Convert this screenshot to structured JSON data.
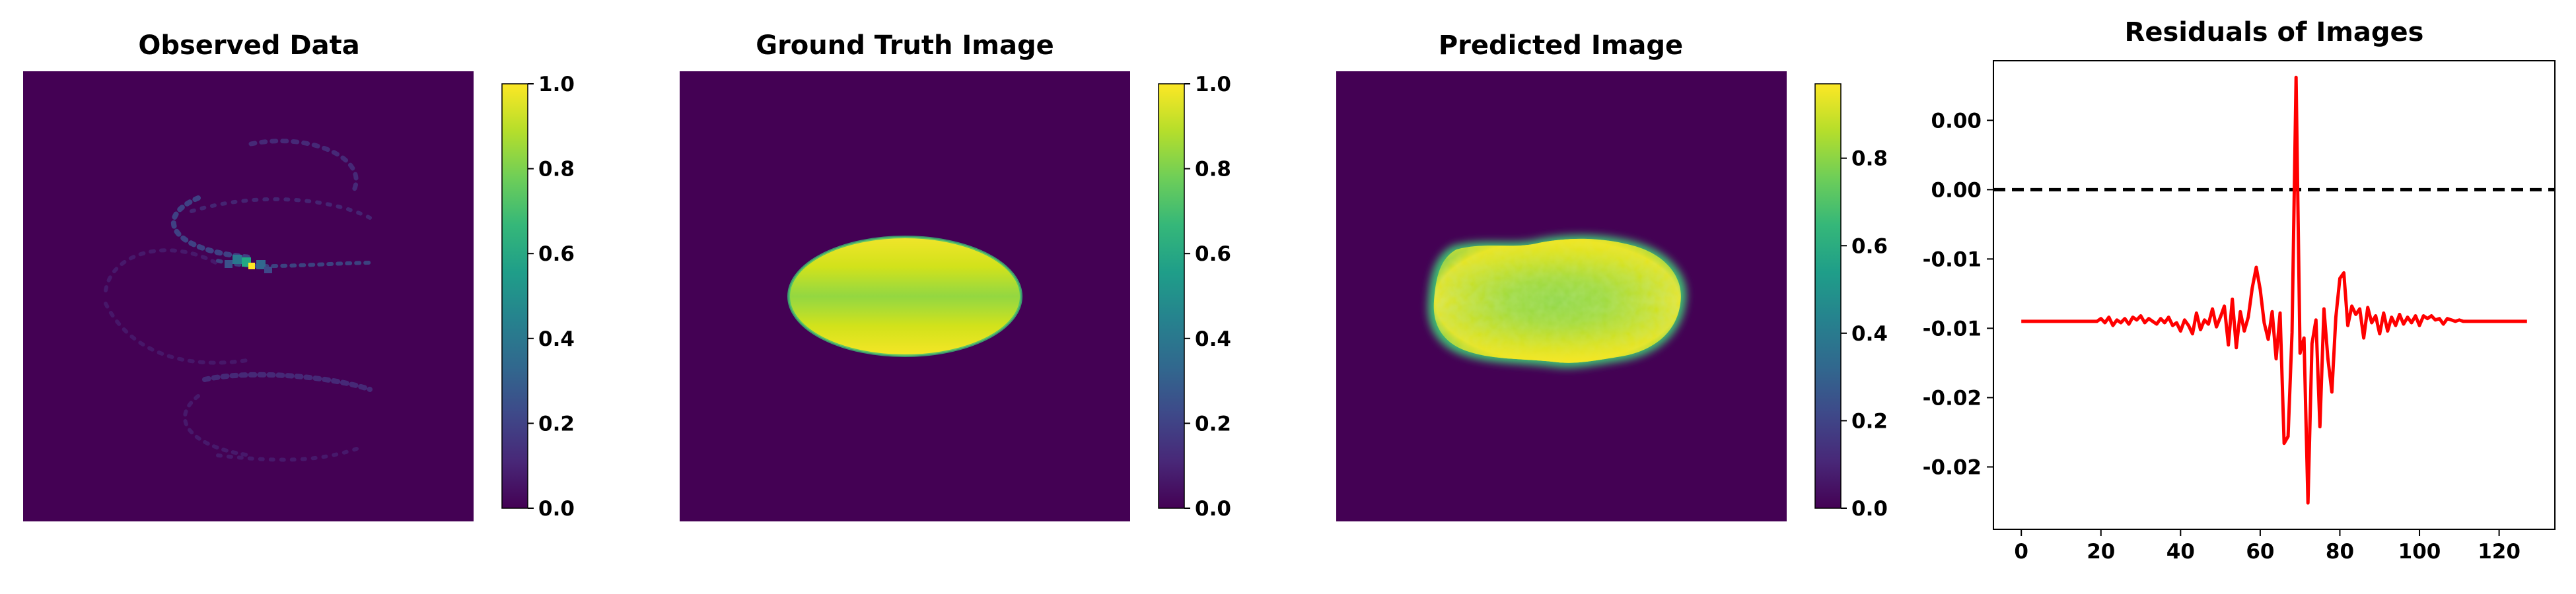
{
  "chart_data": [
    {
      "type": "heatmap",
      "title": "Observed Data",
      "description": "128x128 sparse observed field on dark purple background; a few faint arcs with a bright spot near the center",
      "value_range": [
        0.0,
        1.0
      ],
      "colormap": "viridis",
      "colorbar_ticks": [
        "0.0",
        "0.2",
        "0.4",
        "0.6",
        "0.8",
        "1.0"
      ],
      "colorbar_tick_values": [
        0.0,
        0.2,
        0.4,
        0.6,
        0.8,
        1.0
      ],
      "axes_visible": false
    },
    {
      "type": "heatmap",
      "title": "Ground Truth Image",
      "description": "Filled ellipse (values ~0.85–1.0) centered on a 0-valued background",
      "value_range": [
        0.0,
        1.0
      ],
      "colormap": "viridis",
      "colorbar_ticks": [
        "0.0",
        "0.2",
        "0.4",
        "0.6",
        "0.8",
        "1.0"
      ],
      "colorbar_tick_values": [
        0.0,
        0.2,
        0.4,
        0.6,
        0.8,
        1.0
      ],
      "axes_visible": false
    },
    {
      "type": "heatmap",
      "title": "Predicted Image",
      "description": "Blurry, slightly irregular ellipse (values ~0.7–0.97) on a 0-valued background",
      "value_range": [
        0.0,
        0.97
      ],
      "colormap": "viridis",
      "colorbar_ticks": [
        "0.0",
        "0.2",
        "0.4",
        "0.6",
        "0.8"
      ],
      "colorbar_tick_values": [
        0.0,
        0.2,
        0.4,
        0.6,
        0.8
      ],
      "axes_visible": false
    },
    {
      "type": "line",
      "title": "Residuals of Images",
      "xlabel": "",
      "ylabel": "",
      "xlim": [
        -7,
        134
      ],
      "ylim": [
        -0.0245,
        0.0093
      ],
      "xticks": [
        0,
        20,
        40,
        60,
        80,
        100,
        120
      ],
      "xtick_labels": [
        "0",
        "20",
        "40",
        "60",
        "80",
        "100",
        "120"
      ],
      "yticks": [
        0.005,
        0.0,
        -0.005,
        -0.01,
        -0.015,
        -0.02
      ],
      "ytick_labels": [
        "0.00",
        "0.00",
        "-0.01",
        "-0.01",
        "-0.02",
        "-0.02"
      ],
      "reference_line": {
        "y": 0.0,
        "style": "dashed",
        "color": "#000000"
      },
      "series": [
        {
          "color": "#ff0000",
          "x": [
            0,
            1,
            2,
            3,
            4,
            5,
            6,
            7,
            8,
            9,
            10,
            11,
            12,
            13,
            14,
            15,
            16,
            17,
            18,
            19,
            20,
            21,
            22,
            23,
            24,
            25,
            26,
            27,
            28,
            29,
            30,
            31,
            32,
            33,
            34,
            35,
            36,
            37,
            38,
            39,
            40,
            41,
            42,
            43,
            44,
            45,
            46,
            47,
            48,
            49,
            50,
            51,
            52,
            53,
            54,
            55,
            56,
            57,
            58,
            59,
            60,
            61,
            62,
            63,
            64,
            65,
            66,
            67,
            68,
            69,
            70,
            71,
            72,
            73,
            74,
            75,
            76,
            77,
            78,
            79,
            80,
            81,
            82,
            83,
            84,
            85,
            86,
            87,
            88,
            89,
            90,
            91,
            92,
            93,
            94,
            95,
            96,
            97,
            98,
            99,
            100,
            101,
            102,
            103,
            104,
            105,
            106,
            107,
            108,
            109,
            110,
            111,
            112,
            113,
            114,
            115,
            116,
            117,
            118,
            119,
            120,
            121,
            122,
            123,
            124,
            125,
            126,
            127
          ],
          "values": [
            -0.0095,
            -0.0095,
            -0.0095,
            -0.0095,
            -0.0095,
            -0.0095,
            -0.0095,
            -0.0095,
            -0.0095,
            -0.0095,
            -0.0095,
            -0.0095,
            -0.0095,
            -0.0095,
            -0.0095,
            -0.0095,
            -0.0095,
            -0.0095,
            -0.0095,
            -0.0095,
            -0.0093,
            -0.0096,
            -0.0092,
            -0.0098,
            -0.0094,
            -0.0096,
            -0.0093,
            -0.0097,
            -0.0092,
            -0.0094,
            -0.0091,
            -0.0096,
            -0.0093,
            -0.0095,
            -0.0097,
            -0.0093,
            -0.0096,
            -0.0092,
            -0.0098,
            -0.0096,
            -0.0102,
            -0.0094,
            -0.0098,
            -0.0104,
            -0.0089,
            -0.0101,
            -0.0094,
            -0.0097,
            -0.0086,
            -0.0099,
            -0.0092,
            -0.0084,
            -0.0112,
            -0.0079,
            -0.0114,
            -0.0088,
            -0.0102,
            -0.0092,
            -0.0071,
            -0.0056,
            -0.0072,
            -0.0096,
            -0.0108,
            -0.0088,
            -0.0122,
            -0.0089,
            -0.0183,
            -0.0178,
            -0.0103,
            0.0081,
            -0.0118,
            -0.0107,
            -0.0226,
            -0.0111,
            -0.0094,
            -0.0171,
            -0.0086,
            -0.0122,
            -0.0146,
            -0.0092,
            -0.0064,
            -0.006,
            -0.0098,
            -0.0084,
            -0.009,
            -0.0086,
            -0.0107,
            -0.0085,
            -0.0096,
            -0.0091,
            -0.0104,
            -0.0089,
            -0.0102,
            -0.0092,
            -0.0098,
            -0.009,
            -0.0097,
            -0.0092,
            -0.0096,
            -0.0091,
            -0.0098,
            -0.0091,
            -0.0093,
            -0.0091,
            -0.0094,
            -0.0093,
            -0.0097,
            -0.0093,
            -0.0094,
            -0.0095,
            -0.0094,
            -0.0095,
            -0.0095,
            -0.0095,
            -0.0095,
            -0.0095,
            -0.0095,
            -0.0095,
            -0.0095,
            -0.0095,
            -0.0095,
            -0.0095,
            -0.0095,
            -0.0095,
            -0.0095,
            -0.0095,
            -0.0095,
            -0.0095
          ]
        }
      ],
      "grid": false,
      "legend": "none"
    }
  ],
  "colors": {
    "background_min": "#440154",
    "line": "#ff0000",
    "reference_line": "#000000",
    "viridis": [
      "#440154",
      "#482878",
      "#3e4989",
      "#31688e",
      "#26828e",
      "#1f9e89",
      "#35b779",
      "#6ece58",
      "#b5de2b",
      "#fde725"
    ]
  }
}
